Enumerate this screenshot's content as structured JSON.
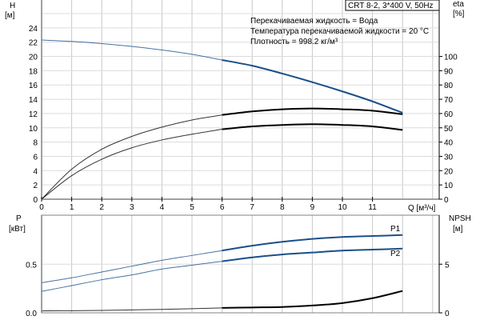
{
  "chart_data": [
    {
      "type": "line",
      "title": "CRT 8-2, 3*400 V, 50Hz",
      "annotations": [
        "Перекачиваемая жидкость = Вода",
        "Температура перекачиваемой жидкости = 20 °C",
        "Плотность = 998.2 кг/м³"
      ],
      "xlabel": "Q [м³/ч]",
      "ylabel": "H",
      "ylabel_unit": "[м]",
      "y2label": "eta",
      "y2label_unit": "[%]",
      "xlim": [
        0,
        13
      ],
      "ylim": [
        0,
        26
      ],
      "y2lim": [
        0,
        130
      ],
      "x_ticks": [
        0,
        1,
        2,
        3,
        4,
        5,
        6,
        7,
        8,
        9,
        10,
        11
      ],
      "y_ticks": [
        0,
        2,
        4,
        6,
        8,
        10,
        12,
        14,
        16,
        18,
        20,
        22,
        24
      ],
      "y2_ticks": [
        0,
        10,
        20,
        30,
        40,
        50,
        60,
        70,
        80,
        90,
        100
      ],
      "grid": true,
      "x": [
        0,
        1,
        2,
        3,
        4,
        5,
        6,
        7,
        8,
        9,
        10,
        11,
        12
      ],
      "series": [
        {
          "axis": "y",
          "color": "#1a4f8a",
          "values": [
            22.3,
            22.1,
            21.8,
            21.4,
            20.9,
            20.3,
            19.5,
            18.7,
            17.6,
            16.4,
            15.1,
            13.7,
            12.1
          ]
        },
        {
          "axis": "y2",
          "color": "#000000",
          "values": [
            0,
            21,
            35,
            44,
            50.5,
            55.5,
            59,
            61.5,
            63,
            63.5,
            63,
            62,
            59.5
          ]
        },
        {
          "axis": "y2",
          "color": "#000000",
          "values": [
            0,
            16.5,
            28,
            36,
            41.5,
            45.5,
            49,
            51,
            52,
            52.5,
            52,
            51,
            48.5
          ]
        }
      ]
    },
    {
      "type": "line",
      "ylabel": "P",
      "ylabel_unit": "[кВт]",
      "y2label": "NPSH",
      "y2label_unit": "[м]",
      "xlim": [
        0,
        13
      ],
      "ylim": [
        0,
        1.0
      ],
      "y2lim": [
        0,
        10
      ],
      "y_ticks": [
        "0.0",
        "0.5"
      ],
      "y2_ticks": [
        "0",
        "5"
      ],
      "grid": true,
      "x": [
        0,
        1,
        2,
        3,
        4,
        5,
        6,
        7,
        8,
        9,
        10,
        11,
        12
      ],
      "series": [
        {
          "name": "P1",
          "axis": "y",
          "color": "#1a4f8a",
          "values": [
            0.31,
            0.36,
            0.42,
            0.48,
            0.54,
            0.59,
            0.64,
            0.69,
            0.73,
            0.76,
            0.78,
            0.79,
            0.8
          ]
        },
        {
          "name": "P2",
          "axis": "y",
          "color": "#1a4f8a",
          "values": [
            0.22,
            0.28,
            0.34,
            0.39,
            0.45,
            0.49,
            0.53,
            0.57,
            0.6,
            0.62,
            0.64,
            0.65,
            0.66
          ]
        },
        {
          "axis": "y2",
          "color": "#000000",
          "values": [
            0.2,
            0.22,
            0.25,
            0.3,
            0.35,
            0.42,
            0.5,
            0.55,
            0.6,
            0.75,
            1.0,
            1.5,
            2.25
          ]
        }
      ]
    }
  ]
}
